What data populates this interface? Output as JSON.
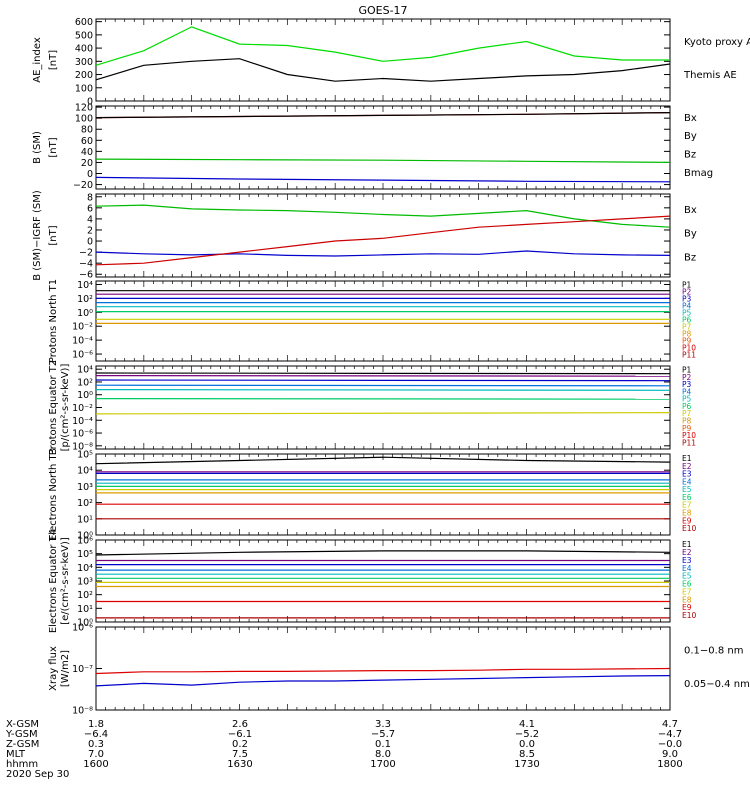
{
  "title": "GOES-17",
  "chart_data": [
    {
      "type": "line",
      "ylabel": "AE_index [nT]",
      "yticks": [
        "0",
        "100",
        "200",
        "300",
        "400",
        "500",
        "600"
      ],
      "ylim": [
        0,
        620
      ],
      "x": [
        1600,
        1610,
        1620,
        1630,
        1640,
        1650,
        1700,
        1710,
        1720,
        1730,
        1740,
        1750,
        1800
      ],
      "series": [
        {
          "name": "Kyoto proxy AE",
          "color": "#00dd00",
          "values": [
            270,
            380,
            560,
            430,
            420,
            370,
            300,
            330,
            400,
            450,
            340,
            310,
            310
          ]
        },
        {
          "name": "Themis AE",
          "color": "#000000",
          "values": [
            160,
            270,
            300,
            320,
            200,
            150,
            170,
            150,
            170,
            190,
            200,
            230,
            280
          ]
        }
      ]
    },
    {
      "type": "line",
      "ylabel": "B (SM) [nT]",
      "yticks": [
        "−20",
        "0",
        "20",
        "40",
        "60",
        "80",
        "100",
        "120"
      ],
      "ylim": [
        -28,
        122
      ],
      "x": [
        1600,
        1630,
        1700,
        1730,
        1800
      ],
      "series": [
        {
          "name": "Bx",
          "color": "#0000cc",
          "values": [
            -7,
            -10,
            -12,
            -14,
            -15
          ]
        },
        {
          "name": "By",
          "color": "#00bb00",
          "values": [
            26,
            25,
            24,
            22,
            20
          ]
        },
        {
          "name": "Bz",
          "color": "#cc0000",
          "values": [
            101,
            103,
            105,
            107,
            110
          ]
        },
        {
          "name": "Bmag",
          "color": "#000000",
          "values": [
            101,
            103,
            105,
            107,
            110
          ]
        }
      ]
    },
    {
      "type": "line",
      "ylabel": "B (SM)−IGRF (SM) [nT]",
      "yticks": [
        "−6",
        "−4",
        "−2",
        "0",
        "2",
        "4",
        "6",
        "8"
      ],
      "ylim": [
        -6.5,
        8.5
      ],
      "x": [
        1600,
        1610,
        1620,
        1630,
        1640,
        1650,
        1700,
        1710,
        1720,
        1730,
        1740,
        1750,
        1800
      ],
      "series": [
        {
          "name": "Bx",
          "color": "#0000cc",
          "values": [
            -2.0,
            -2.3,
            -2.5,
            -2.3,
            -2.6,
            -2.7,
            -2.5,
            -2.3,
            -2.4,
            -1.8,
            -2.3,
            -2.5,
            -2.6
          ]
        },
        {
          "name": "By",
          "color": "#00bb00",
          "values": [
            6.3,
            6.5,
            5.8,
            5.6,
            5.5,
            5.2,
            4.8,
            4.5,
            5.0,
            5.5,
            4.0,
            3.0,
            2.5
          ]
        },
        {
          "name": "Bz",
          "color": "#cc0000",
          "values": [
            -4.3,
            -4.0,
            -3.0,
            -2.0,
            -1.0,
            0.0,
            0.5,
            1.5,
            2.5,
            3.0,
            3.5,
            4.0,
            4.5
          ]
        }
      ]
    },
    {
      "type": "line",
      "ylabel": "Protons North T1",
      "yticks": [
        "10⁴",
        "10²",
        "10⁰",
        "10⁻²",
        "10⁻⁴",
        "10⁻⁶"
      ],
      "ylim": [
        -7,
        4.5
      ],
      "ylog": true,
      "x": [
        1600,
        1800
      ],
      "series": [
        {
          "name": "P1",
          "color": "#000000",
          "values": [
            3.1,
            3.1
          ]
        },
        {
          "name": "P2",
          "color": "#7a0080",
          "values": [
            2.6,
            2.6
          ]
        },
        {
          "name": "P3",
          "color": "#0000cc",
          "values": [
            2.0,
            2.0
          ]
        },
        {
          "name": "P4",
          "color": "#0070dd",
          "values": [
            1.4,
            1.4
          ]
        },
        {
          "name": "P5",
          "color": "#00bbbb",
          "values": [
            0.8,
            0.8
          ]
        },
        {
          "name": "P6",
          "color": "#00cc66",
          "values": [
            0.1,
            0.1
          ]
        },
        {
          "name": "P7",
          "color": "#cccc00",
          "values": [
            -1.0,
            -1.0
          ]
        },
        {
          "name": "P8",
          "color": "#dd9900",
          "values": [
            -1.6,
            -1.6
          ]
        },
        {
          "name": "P9",
          "color": "#ee5500",
          "values": [
            -9,
            -9
          ]
        },
        {
          "name": "P10",
          "color": "#dd0000",
          "values": [
            -9,
            -9
          ]
        },
        {
          "name": "P11",
          "color": "#aa0000",
          "values": [
            -9,
            -9
          ]
        }
      ]
    },
    {
      "type": "line",
      "ylabel": "Protons Equator T2 [p/(cm²-s-sr-keV)]",
      "yticks": [
        "10⁴",
        "10²",
        "10⁰",
        "10⁻²",
        "10⁻⁴",
        "10⁻⁶",
        "10⁻⁸"
      ],
      "ylim": [
        -8.5,
        4.5
      ],
      "ylog": true,
      "x": [
        1600,
        1800
      ],
      "series": [
        {
          "name": "P1",
          "color": "#000000",
          "values": [
            3.4,
            3.3
          ]
        },
        {
          "name": "P2",
          "color": "#7a0080",
          "values": [
            3.0,
            2.9
          ]
        },
        {
          "name": "P3",
          "color": "#0000cc",
          "values": [
            2.3,
            2.2
          ]
        },
        {
          "name": "P4",
          "color": "#0070dd",
          "values": [
            1.5,
            1.4
          ]
        },
        {
          "name": "P5",
          "color": "#00bbbb",
          "values": [
            0.8,
            0.7
          ]
        },
        {
          "name": "P6",
          "color": "#00cc66",
          "values": [
            -0.6,
            -0.7
          ]
        },
        {
          "name": "P7",
          "color": "#cccc00",
          "values": [
            -3.0,
            -2.8
          ]
        },
        {
          "name": "P8",
          "color": "#dd9900",
          "values": [
            -9,
            -9
          ]
        },
        {
          "name": "P9",
          "color": "#ee5500",
          "values": [
            -9,
            -9
          ]
        },
        {
          "name": "P10",
          "color": "#dd0000",
          "values": [
            -9,
            -9
          ]
        },
        {
          "name": "P11",
          "color": "#aa0000",
          "values": [
            -9,
            -9
          ]
        }
      ]
    },
    {
      "type": "line",
      "ylabel": "Electrons North T3",
      "yticks": [
        "10⁵",
        "10⁴",
        "10³",
        "10²",
        "10¹",
        "10⁰"
      ],
      "ylim": [
        0,
        5
      ],
      "ylog": true,
      "x": [
        1600,
        1630,
        1700,
        1730,
        1800
      ],
      "series": [
        {
          "name": "E1",
          "color": "#000000",
          "values": [
            4.4,
            4.6,
            4.8,
            4.6,
            4.5
          ]
        },
        {
          "name": "E2",
          "color": "#7a0080",
          "values": [
            3.9,
            3.9,
            3.9,
            3.9,
            3.9
          ]
        },
        {
          "name": "E3",
          "color": "#0000cc",
          "values": [
            3.8,
            3.8,
            3.8,
            3.8,
            3.8
          ]
        },
        {
          "name": "E4",
          "color": "#0070dd",
          "values": [
            3.4,
            3.4,
            3.4,
            3.4,
            3.4
          ]
        },
        {
          "name": "E5",
          "color": "#00bbbb",
          "values": [
            3.2,
            3.2,
            3.2,
            3.2,
            3.2
          ]
        },
        {
          "name": "E6",
          "color": "#00cc66",
          "values": [
            3.0,
            3.0,
            3.0,
            3.0,
            3.0
          ]
        },
        {
          "name": "E7",
          "color": "#cccc00",
          "values": [
            2.8,
            2.8,
            2.8,
            2.8,
            2.8
          ]
        },
        {
          "name": "E8",
          "color": "#dd9900",
          "values": [
            2.6,
            2.6,
            2.6,
            2.6,
            2.6
          ]
        },
        {
          "name": "E9",
          "color": "#dd0000",
          "values": [
            1.9,
            1.9,
            1.9,
            1.9,
            1.9
          ]
        },
        {
          "name": "E10",
          "color": "#aa0000",
          "values": [
            1.0,
            1.0,
            1.0,
            1.0,
            1.0
          ]
        }
      ]
    },
    {
      "type": "line",
      "ylabel": "Electrons Equator T4 [e/(cm²-s-sr-keV)]",
      "yticks": [
        "10⁶",
        "10⁵",
        "10⁴",
        "10³",
        "10²",
        "10¹",
        "10⁰"
      ],
      "ylim": [
        0,
        6
      ],
      "ylog": true,
      "x": [
        1600,
        1630,
        1700,
        1730,
        1800
      ],
      "series": [
        {
          "name": "E1",
          "color": "#000000",
          "values": [
            4.9,
            5.1,
            5.2,
            5.2,
            5.1
          ]
        },
        {
          "name": "E2",
          "color": "#7a0080",
          "values": [
            4.5,
            4.5,
            4.5,
            4.5,
            4.5
          ]
        },
        {
          "name": "E3",
          "color": "#0000cc",
          "values": [
            4.2,
            4.2,
            4.2,
            4.2,
            4.2
          ]
        },
        {
          "name": "E4",
          "color": "#0070dd",
          "values": [
            3.8,
            3.8,
            3.8,
            3.8,
            3.8
          ]
        },
        {
          "name": "E5",
          "color": "#00bbbb",
          "values": [
            3.5,
            3.5,
            3.5,
            3.5,
            3.5
          ]
        },
        {
          "name": "E6",
          "color": "#00cc66",
          "values": [
            3.2,
            3.2,
            3.2,
            3.2,
            3.2
          ]
        },
        {
          "name": "E7",
          "color": "#cccc00",
          "values": [
            2.9,
            2.9,
            2.9,
            2.9,
            2.9
          ]
        },
        {
          "name": "E8",
          "color": "#dd9900",
          "values": [
            2.6,
            2.6,
            2.6,
            2.6,
            2.6
          ]
        },
        {
          "name": "E9",
          "color": "#dd0000",
          "values": [
            1.5,
            1.5,
            1.5,
            1.5,
            1.5
          ]
        },
        {
          "name": "E10",
          "color": "#aa0000",
          "values": [
            0.3,
            0.3,
            0.3,
            0.3,
            0.3
          ]
        }
      ]
    },
    {
      "type": "line",
      "ylabel": "Xray flux [W/m2]",
      "yticks": [
        "10⁻⁶",
        "10⁻⁷",
        "10⁻⁸"
      ],
      "ylim": [
        -8,
        -6
      ],
      "ylog": true,
      "x": [
        1600,
        1610,
        1620,
        1630,
        1640,
        1650,
        1700,
        1710,
        1720,
        1730,
        1740,
        1750,
        1800
      ],
      "series": [
        {
          "name": "0.1−0.8 nm",
          "color": "#dd0000",
          "values": [
            -7.12,
            -7.08,
            -7.08,
            -7.07,
            -7.07,
            -7.06,
            -7.05,
            -7.05,
            -7.04,
            -7.02,
            -7.02,
            -7.01,
            -7.0
          ]
        },
        {
          "name": "0.05−0.4 nm",
          "color": "#0000cc",
          "values": [
            -7.42,
            -7.36,
            -7.4,
            -7.33,
            -7.3,
            -7.3,
            -7.28,
            -7.26,
            -7.24,
            -7.22,
            -7.2,
            -7.18,
            -7.17
          ]
        }
      ]
    }
  ],
  "footer": {
    "rows": [
      {
        "label": "X-GSM",
        "values": [
          "1.8",
          "2.6",
          "3.3",
          "4.1",
          "4.7"
        ]
      },
      {
        "label": "Y-GSM",
        "values": [
          "−6.4",
          "−6.1",
          "−5.7",
          "−5.2",
          "−4.7"
        ]
      },
      {
        "label": "Z-GSM",
        "values": [
          "0.3",
          "0.2",
          "0.1",
          "0.0",
          "−0.0"
        ]
      },
      {
        "label": "MLT",
        "values": [
          "7.0",
          "7.5",
          "8.0",
          "8.5",
          "9.0"
        ]
      },
      {
        "label": "hhmm",
        "values": [
          "1600",
          "1630",
          "1700",
          "1730",
          "1800"
        ]
      }
    ],
    "date": "2020 Sep 30"
  }
}
